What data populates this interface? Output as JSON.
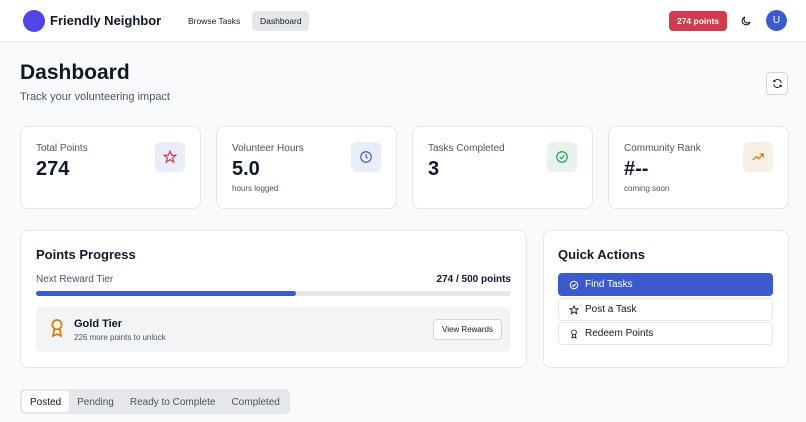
{
  "header": {
    "brand": "Friendly Neighbor",
    "nav": [
      "Browse Tasks",
      "Dashboard"
    ],
    "points_badge": "274 points",
    "avatar": "U"
  },
  "page": {
    "title": "Dashboard",
    "subtitle": "Track your volunteering impact"
  },
  "stats": [
    {
      "label": "Total Points",
      "value": "274"
    },
    {
      "label": "Volunteer Hours",
      "value": "5.0",
      "note": "hours logged"
    },
    {
      "label": "Tasks Completed",
      "value": "3"
    },
    {
      "label": "Community Rank",
      "value": "#--",
      "note": "coming soon"
    }
  ],
  "progress": {
    "title": "Points Progress",
    "label": "Next Reward Tier",
    "value_text": "274 / 500 points",
    "value": 274,
    "max": 500,
    "tier": "Gold Tier",
    "tier_note": "226 more points to unlock",
    "button": "View Rewards"
  },
  "quick_actions": {
    "title": "Quick Actions",
    "actions": [
      "Find Tasks",
      "Post a Task",
      "Redeem Points"
    ]
  },
  "tabs": [
    "Posted",
    "Pending",
    "Ready to Complete",
    "Completed"
  ]
}
